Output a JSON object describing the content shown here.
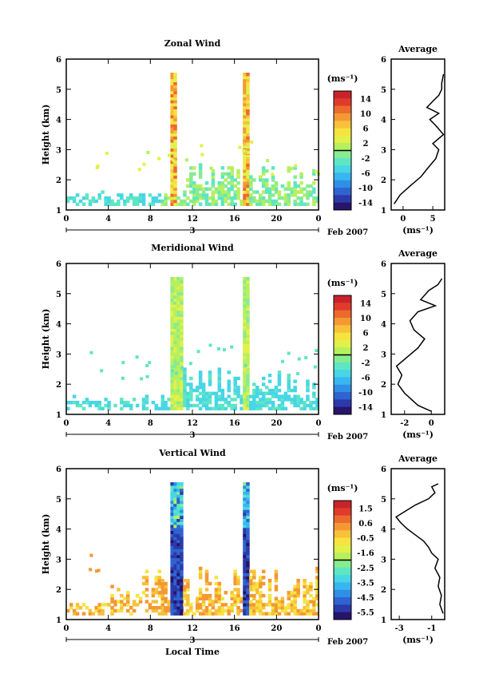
{
  "figure": {
    "date_label": "Feb 2007",
    "day_label": "3",
    "xlabel": "Local Time",
    "ylabel": "Height (km)",
    "unit_label": "(ms⁻¹)",
    "avg_title": "Average",
    "avg_xlabel": "(ms⁻¹)"
  },
  "chart_data": [
    {
      "type": "heatmap",
      "title": "Zonal Wind",
      "xlabel": "",
      "ylabel": "Height (km)",
      "xlim": [
        0,
        24
      ],
      "ylim": [
        1,
        6
      ],
      "xticks": [
        "0",
        "4",
        "8",
        "12",
        "16",
        "20",
        "0"
      ],
      "yticks": [
        "1",
        "2",
        "3",
        "4",
        "5",
        "6"
      ],
      "colorbar": {
        "ticks": [
          "14",
          "10",
          "6",
          "2",
          "-2",
          "-6",
          "-10",
          "-14"
        ],
        "range": [
          -16,
          16
        ]
      },
      "bursts": [
        [
          9.9,
          10.4
        ],
        [
          16.8,
          17.3
        ]
      ],
      "average": {
        "title": "Average",
        "xlim": [
          -2,
          7
        ],
        "xticks": [
          "0",
          "5"
        ],
        "yticks": [
          "1",
          "2",
          "3",
          "4",
          "5",
          "6"
        ],
        "x": [
          -1.5,
          -0.5,
          1.2,
          3.0,
          4.2,
          5.5,
          6.0,
          5.0,
          6.8,
          5.5,
          4.5,
          6.0,
          4.0,
          5.0,
          6.0,
          6.5,
          6.5,
          6.8
        ],
        "y": [
          1.2,
          1.5,
          1.8,
          2.1,
          2.4,
          2.7,
          3.0,
          3.2,
          3.5,
          3.8,
          4.0,
          4.2,
          4.4,
          4.6,
          4.8,
          5.0,
          5.2,
          5.5
        ]
      }
    },
    {
      "type": "heatmap",
      "title": "Meridional Wind",
      "xlabel": "",
      "ylabel": "Height (km)",
      "xlim": [
        0,
        24
      ],
      "ylim": [
        1,
        6
      ],
      "xticks": [
        "0",
        "4",
        "8",
        "12",
        "16",
        "20",
        "0"
      ],
      "yticks": [
        "1",
        "2",
        "3",
        "4",
        "5",
        "6"
      ],
      "colorbar": {
        "ticks": [
          "14",
          "10",
          "6",
          "2",
          "-2",
          "-6",
          "-10",
          "-14"
        ],
        "range": [
          -16,
          16
        ]
      },
      "bursts": [
        [
          9.9,
          10.9
        ],
        [
          16.8,
          17.3
        ]
      ],
      "average": {
        "title": "Average",
        "xlim": [
          -3,
          1
        ],
        "xticks": [
          "-2",
          "0"
        ],
        "yticks": [
          "1",
          "2",
          "3",
          "4",
          "5",
          "6"
        ],
        "x": [
          0.0,
          -1.0,
          -2.0,
          -2.5,
          -2.2,
          -2.6,
          -1.8,
          -1.0,
          -0.5,
          -1.3,
          -1.6,
          -1.0,
          0.3,
          -0.8,
          -0.2,
          0.5,
          0.8
        ],
        "y": [
          1.1,
          1.3,
          1.7,
          2.0,
          2.3,
          2.6,
          2.9,
          3.2,
          3.5,
          3.8,
          4.1,
          4.4,
          4.6,
          4.8,
          5.1,
          5.3,
          5.5
        ]
      }
    },
    {
      "type": "heatmap",
      "title": "Vertical Wind",
      "xlabel": "Local Time",
      "ylabel": "Height (km)",
      "xlim": [
        0,
        24
      ],
      "ylim": [
        1,
        6
      ],
      "xticks": [
        "0",
        "4",
        "8",
        "12",
        "16",
        "20",
        "0"
      ],
      "yticks": [
        "1",
        "2",
        "3",
        "4",
        "5",
        "6"
      ],
      "colorbar": {
        "ticks": [
          "1.5",
          "0.6",
          "-0.5",
          "-1.6",
          "-2.5",
          "-3.5",
          "-4.5",
          "-5.5"
        ],
        "range": [
          -6,
          2
        ]
      },
      "bursts": [
        [
          9.9,
          10.9
        ],
        [
          16.8,
          17.3
        ]
      ],
      "average": {
        "title": "Average",
        "xlim": [
          -3.5,
          -0.2
        ],
        "xticks": [
          "-3",
          "-1"
        ],
        "yticks": [
          "1",
          "2",
          "3",
          "4",
          "5",
          "6"
        ],
        "x": [
          -0.3,
          -0.5,
          -0.4,
          -0.6,
          -0.5,
          -0.8,
          -0.6,
          -1.0,
          -1.2,
          -1.5,
          -2.0,
          -2.5,
          -2.9,
          -3.2,
          -2.6,
          -2.0,
          -1.2,
          -0.8,
          -1.0,
          -0.6
        ],
        "y": [
          1.2,
          1.5,
          1.8,
          2.1,
          2.4,
          2.7,
          3.0,
          3.2,
          3.4,
          3.6,
          3.8,
          4.0,
          4.2,
          4.4,
          4.6,
          4.8,
          5.0,
          5.2,
          5.4,
          5.5
        ]
      }
    }
  ]
}
